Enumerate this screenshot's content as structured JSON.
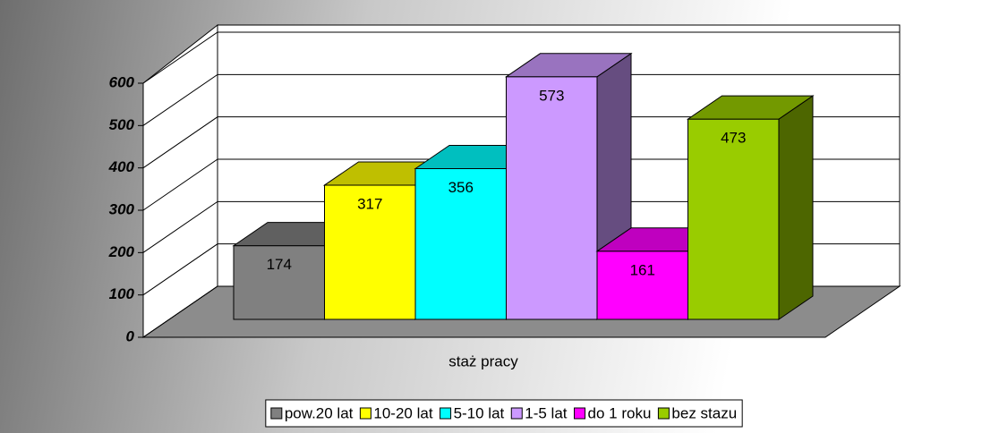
{
  "chart_data": {
    "type": "bar3d",
    "categories": [
      "staż pracy"
    ],
    "series": [
      {
        "name": "pow.20 lat",
        "color": "#808080",
        "values": [
          174
        ]
      },
      {
        "name": "10-20 lat",
        "color": "#ffff00",
        "values": [
          317
        ]
      },
      {
        "name": "5-10 lat",
        "color": "#00ffff",
        "values": [
          356
        ]
      },
      {
        "name": "1-5 lat",
        "color": "#cc99ff",
        "values": [
          573
        ]
      },
      {
        "name": "do 1 roku",
        "color": "#ff00ff",
        "values": [
          161
        ]
      },
      {
        "name": "bez stazu",
        "color": "#99cc00",
        "values": [
          473
        ]
      }
    ],
    "ylim": [
      0,
      600
    ],
    "yticks": [
      0,
      100,
      200,
      300,
      400,
      500,
      600
    ],
    "grid": true,
    "legend": "bottom"
  }
}
